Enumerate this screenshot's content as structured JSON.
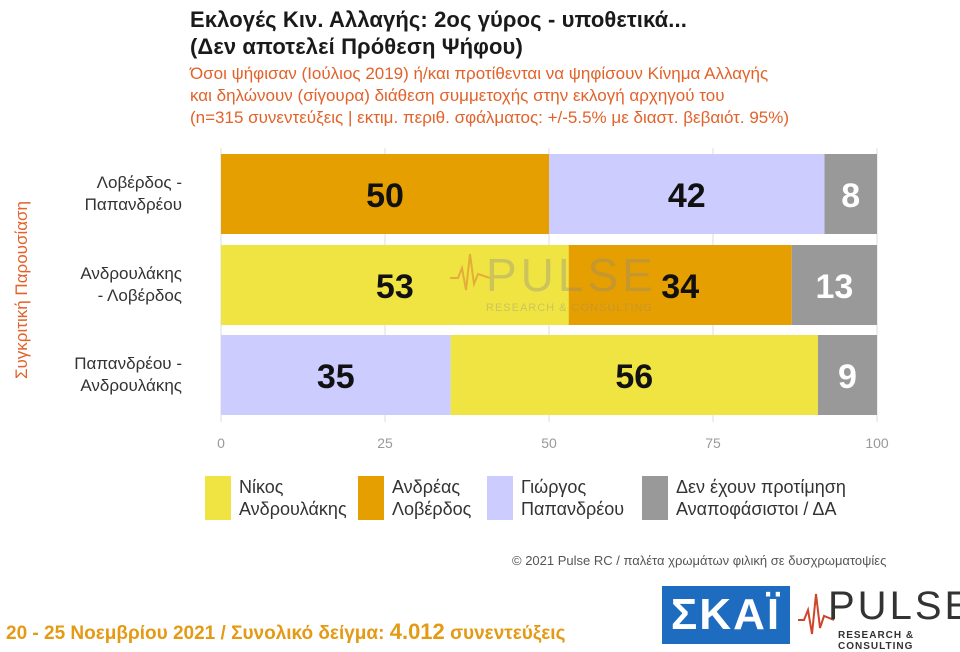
{
  "header": {
    "title_line1": "Εκλογές Κιν. Αλλαγής: 2ος γύρος - υποθετικά...",
    "title_line2": "(Δεν αποτελεί Πρόθεση Ψήφου)",
    "subtitle_line1": "Όσοι ψήφισαν (Ιούλιος 2019) ή/και προτίθενται να ψηφίσουν Κίνημα Αλλαγής",
    "subtitle_line2": "και δηλώνουν (σίγουρα) διάθεση συμμετοχής στην εκλογή αρχηγού του",
    "subtitle_line3": "(n=315 συνεντεύξεις | εκτιμ. περιθ. σφάλματος: +/-5.5% με διαστ. βεβαιότ. 95%)"
  },
  "chart_data": {
    "type": "bar",
    "orientation": "horizontal",
    "stacked": true,
    "ylabel": "Συγκριτική Παρουσίαση",
    "xlim": [
      0,
      100
    ],
    "xticks": [
      0,
      25,
      50,
      75,
      100
    ],
    "grid": true,
    "legend_position": "bottom",
    "rows": [
      {
        "label_line1": "Λοβέρδος -",
        "label_line2": "Παπανδρέου",
        "segments": [
          {
            "series": "loverdos",
            "value": 50
          },
          {
            "series": "papandreou",
            "value": 42
          },
          {
            "series": "undecided",
            "value": 8
          }
        ]
      },
      {
        "label_line1": "Ανδρουλάκης",
        "label_line2": "- Λοβέρδος",
        "segments": [
          {
            "series": "androulakis",
            "value": 53
          },
          {
            "series": "loverdos",
            "value": 34
          },
          {
            "series": "undecided",
            "value": 13
          }
        ]
      },
      {
        "label_line1": "Παπανδρέου -",
        "label_line2": "Ανδρουλάκης",
        "segments": [
          {
            "series": "papandreou",
            "value": 35
          },
          {
            "series": "androulakis",
            "value": 56
          },
          {
            "series": "undecided",
            "value": 9
          }
        ]
      }
    ],
    "series": [
      {
        "key": "androulakis",
        "name": "Νίκος\nΑνδρουλάκης",
        "color": "#f0e442"
      },
      {
        "key": "loverdos",
        "name": "Ανδρέας\nΛοβέρδος",
        "color": "#e69f00"
      },
      {
        "key": "papandreou",
        "name": "Γιώργος\nΠαπανδρέου",
        "color": "#ccccff"
      },
      {
        "key": "undecided",
        "name": "Δεν έχουν προτίμηση\nΑναποφάσιστοι / ΔΑ",
        "color": "#999999"
      }
    ]
  },
  "watermark": {
    "word": "PULSE",
    "sub": "RESEARCH & CONSULTING"
  },
  "credit": "© 2021 Pulse RC  /  παλέτα χρωμάτων φιλική σε δυσχρωματοψίες",
  "footer": {
    "dates": "20 - 25  Νοεμβρίου 2021  /  Συνολικό δείγμα:",
    "sample": "4.012",
    "sample_unit": "συνεντεύξεις"
  },
  "logos": {
    "skai": "ΣΚΑΪ",
    "pulse_word": "PULSE",
    "pulse_sub": "RESEARCH & CONSULTING"
  }
}
